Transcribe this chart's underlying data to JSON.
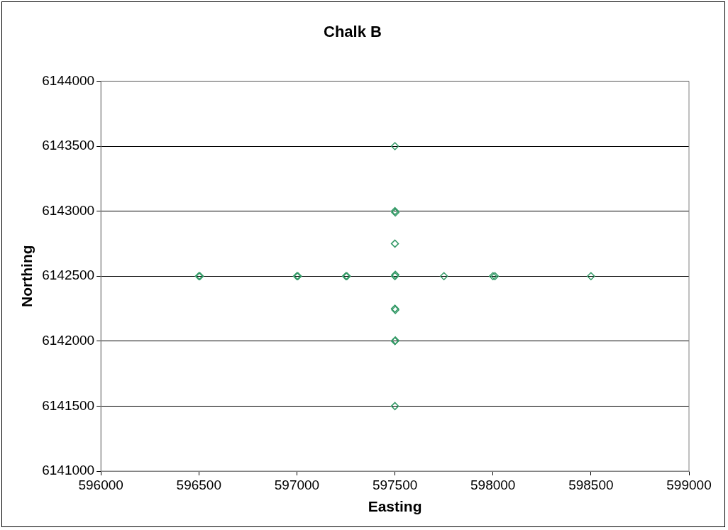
{
  "chart_data": {
    "type": "scatter",
    "title": "Chalk B",
    "xlabel": "Easting",
    "ylabel": "Northing",
    "series": [
      {
        "color": "#339966",
        "x": [
          596500,
          596505,
          597000,
          597005,
          597250,
          597255,
          597500,
          597502,
          597750,
          598000,
          598010,
          598500,
          597500,
          597500,
          597502,
          597500,
          597500,
          597502,
          597500,
          597502,
          597500
        ],
        "values": [
          6142500,
          6142500,
          6142500,
          6142500,
          6142500,
          6142500,
          6142500,
          6142510,
          6142500,
          6142500,
          6142500,
          6142500,
          6143500,
          6143000,
          6142990,
          6142750,
          6142250,
          6142240,
          6142000,
          6142005,
          6141500
        ]
      }
    ],
    "xlim": [
      596000,
      599000
    ],
    "xticks": [
      596000,
      596500,
      597000,
      597500,
      598000,
      598500,
      599000
    ],
    "ylim": [
      6141000,
      6144000
    ],
    "yticks": [
      6141000,
      6141500,
      6142000,
      6142500,
      6143000,
      6143500,
      6144000
    ],
    "grid": "y",
    "legend": false,
    "marker": "diamond"
  }
}
